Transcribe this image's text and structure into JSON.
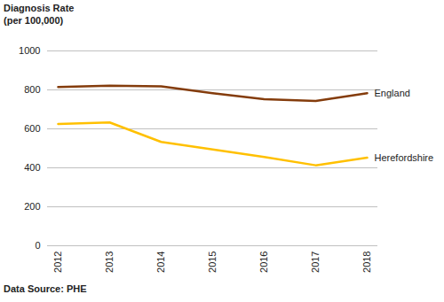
{
  "chart_data": {
    "type": "line",
    "y_label": "Diagnosis Rate\n(per 100,000)",
    "caption": "Data Source: PHE",
    "categories": [
      "2012",
      "2013",
      "2014",
      "2015",
      "2016",
      "2017",
      "2018"
    ],
    "series": [
      {
        "name": "England",
        "color": "#843c0c",
        "values": [
          815,
          822,
          818,
          783,
          752,
          743,
          783
        ]
      },
      {
        "name": "Herefordshire",
        "color": "#ffc000",
        "values": [
          625,
          633,
          533,
          494,
          456,
          413,
          452
        ]
      }
    ],
    "ylim": [
      0,
      1000
    ],
    "yticks": [
      0,
      200,
      400,
      600,
      800,
      1000
    ],
    "grid": true
  }
}
